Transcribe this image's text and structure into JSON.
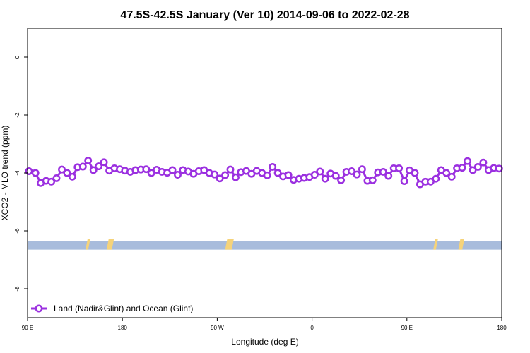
{
  "chart_data": {
    "type": "line",
    "title": "47.5S-42.5S January (Ver 10)   2014-09-06 to 2022-02-28",
    "xlabel": "Longitude (deg E)",
    "ylabel": "XCO2 - MLO trend (ppm)",
    "xlim": [
      90,
      450
    ],
    "ylim": [
      -9.0,
      1.0
    ],
    "x_ticks": [
      {
        "value": 90,
        "label": "90 E"
      },
      {
        "value": 162,
        "label": "180"
      },
      {
        "value": 234,
        "label": "90 W"
      },
      {
        "value": 306,
        "label": "0"
      },
      {
        "value": 378,
        "label": "90 E"
      },
      {
        "value": 450,
        "label": "180"
      }
    ],
    "y_ticks": [
      {
        "value": 0,
        "label": "0"
      },
      {
        "value": -2,
        "label": "-2"
      },
      {
        "value": -4,
        "label": "-4"
      },
      {
        "value": -6,
        "label": "-6"
      },
      {
        "value": -8,
        "label": "-8"
      }
    ],
    "grid": false,
    "legend_position": "bottom-left",
    "series": [
      {
        "name": "Land (Nadir&Glint) and Ocean (Glint)",
        "color": "#9b30e0",
        "marker": "open-circle",
        "x": [
          91,
          96,
          100,
          104,
          108,
          112,
          116,
          120,
          124,
          128,
          132,
          136,
          140,
          144,
          148,
          152,
          156,
          160,
          164,
          168,
          172,
          176,
          180,
          184,
          188,
          192,
          196,
          200,
          204,
          208,
          212,
          216,
          220,
          224,
          228,
          232,
          236,
          240,
          244,
          248,
          252,
          256,
          260,
          264,
          268,
          272,
          276,
          280,
          284,
          288,
          292,
          296,
          300,
          304,
          308,
          312,
          316,
          320,
          324,
          328,
          332,
          336,
          340,
          344,
          348,
          352,
          356,
          360,
          364,
          368,
          372,
          376,
          380,
          384,
          388,
          392,
          396,
          400,
          404,
          408,
          412,
          416,
          420,
          424,
          428,
          432,
          436,
          440,
          444,
          448
        ],
        "y": [
          -3.94,
          -4.0,
          -4.35,
          -4.27,
          -4.3,
          -4.18,
          -3.88,
          -4.0,
          -4.13,
          -3.8,
          -3.78,
          -3.57,
          -3.9,
          -3.77,
          -3.63,
          -3.92,
          -3.84,
          -3.87,
          -3.92,
          -3.96,
          -3.9,
          -3.88,
          -3.87,
          -4.0,
          -3.89,
          -3.96,
          -3.99,
          -3.9,
          -4.06,
          -3.9,
          -3.95,
          -4.03,
          -3.94,
          -3.9,
          -4.0,
          -4.05,
          -4.19,
          -4.07,
          -3.88,
          -4.15,
          -3.97,
          -3.93,
          -4.03,
          -3.93,
          -4.0,
          -4.08,
          -3.79,
          -4.0,
          -4.12,
          -4.07,
          -4.24,
          -4.2,
          -4.17,
          -4.14,
          -4.06,
          -3.95,
          -4.2,
          -4.02,
          -4.1,
          -4.25,
          -3.96,
          -3.94,
          -4.05,
          -3.87,
          -4.27,
          -4.25,
          -3.98,
          -3.96,
          -4.1,
          -3.84,
          -3.84,
          -4.28,
          -3.91,
          -4.0,
          -4.39,
          -4.3,
          -4.3,
          -4.2,
          -3.9,
          -4.0,
          -4.13,
          -3.84,
          -3.82,
          -3.59,
          -3.9,
          -3.79,
          -3.64,
          -3.9,
          -3.83,
          -3.85
        ]
      }
    ],
    "coverage_band": {
      "y_range": [
        -6.65,
        -6.35
      ],
      "ocean_color": "#a8bcdc",
      "land_color": "#f5d37a",
      "land_segments": [
        [
          134,
          136
        ],
        [
          150,
          154
        ],
        [
          240,
          245
        ],
        [
          398,
          400
        ],
        [
          417,
          420
        ]
      ]
    }
  }
}
